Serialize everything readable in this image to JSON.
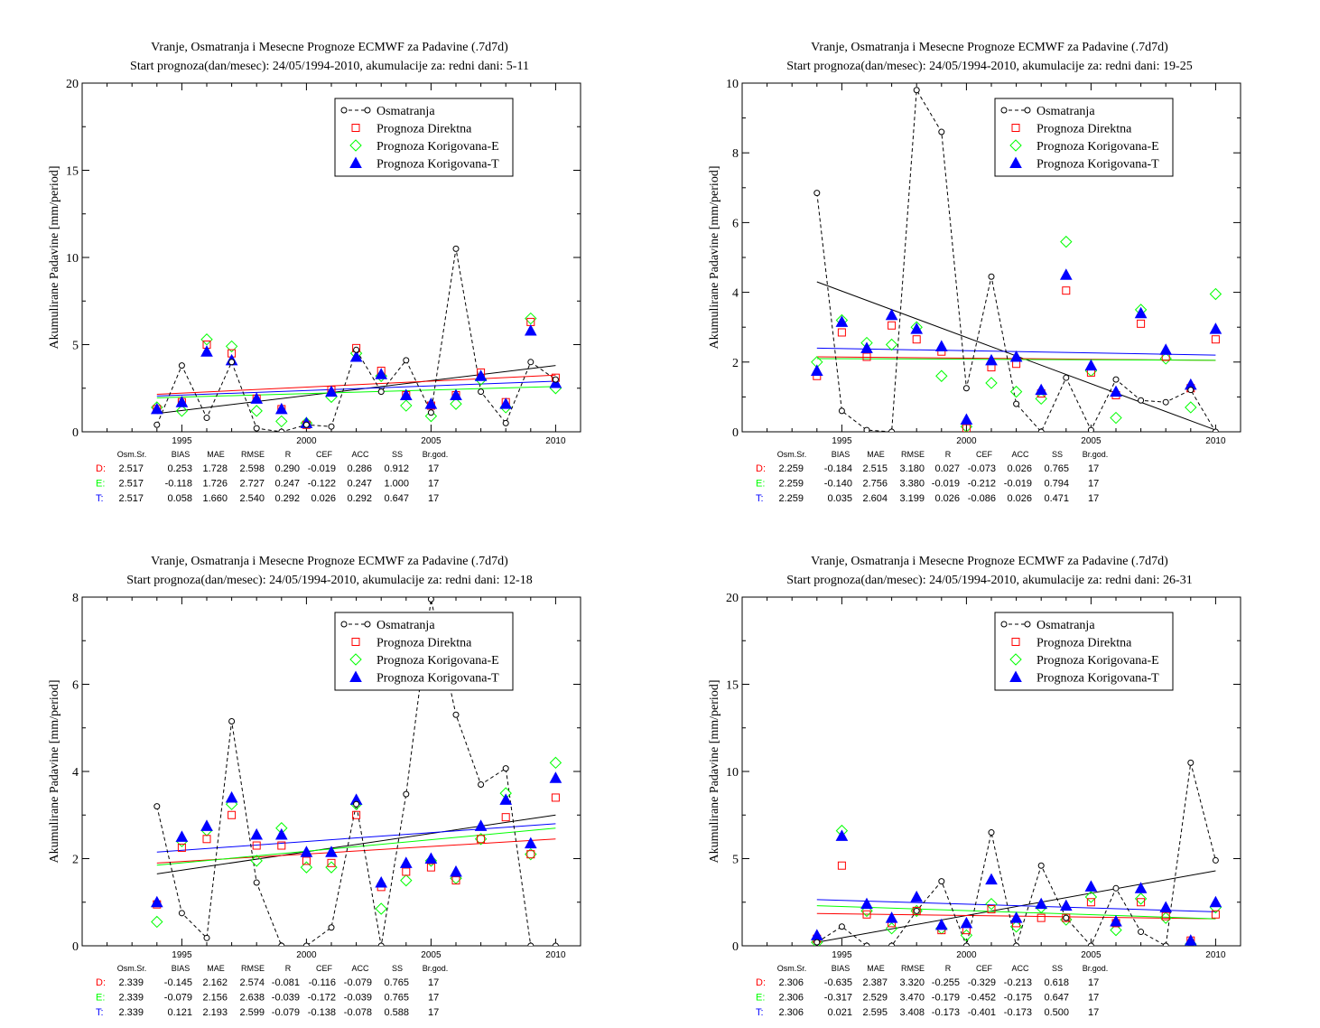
{
  "series_names": [
    "Osmatranja",
    "Prognoza Direktna",
    "Prognoza Korigovana-E",
    "Prognoza Korigovana-T"
  ],
  "ylabel": "Akumulirane Padavine [mm/period]",
  "stat_headers": [
    "Osm.Sr.",
    "BIAS",
    "MAE",
    "RMSE",
    "R",
    "CEF",
    "ACC",
    "SS",
    "Br.god."
  ],
  "colors": {
    "obs": "#000000",
    "direct": "#ff0000",
    "corr_e": "#00ff00",
    "corr_t": "#0000ff"
  },
  "chart_data": [
    {
      "type": "scatter",
      "title": "Vranje, Osmatranja i Mesecne Prognoze ECMWF za Padavine (.7d7d)",
      "subtitle": "Start prognoza(dan/mesec): 24/05/1994-2010, akumulacije za: redni dani: 5-11",
      "xlim": [
        1991,
        2011
      ],
      "ylim": [
        0,
        20
      ],
      "xticks": [
        1995,
        2000,
        2005,
        2010
      ],
      "yticks": [
        0,
        5,
        10,
        15,
        20
      ],
      "x": [
        1994,
        1995,
        1996,
        1997,
        1998,
        1999,
        2000,
        2001,
        2002,
        2003,
        2004,
        2005,
        2006,
        2007,
        2008,
        2009,
        2010
      ],
      "series": [
        {
          "name": "Osmatranja",
          "values": [
            0.4,
            3.8,
            0.8,
            4.0,
            0.2,
            0.0,
            0.4,
            0.3,
            4.7,
            2.3,
            4.1,
            1.1,
            10.5,
            2.3,
            0.5,
            4.0,
            3.0
          ]
        },
        {
          "name": "Prognoza Direktna",
          "values": [
            1.3,
            1.7,
            5.0,
            4.5,
            1.9,
            1.3,
            0.4,
            2.4,
            4.8,
            3.5,
            2.1,
            1.5,
            2.1,
            3.4,
            1.7,
            6.3,
            3.1
          ]
        },
        {
          "name": "Prognoza Korigovana-E",
          "values": [
            1.4,
            1.2,
            5.3,
            4.9,
            1.2,
            0.6,
            0.5,
            2.0,
            4.5,
            3.2,
            1.5,
            0.9,
            1.6,
            3.0,
            1.4,
            6.5,
            2.5
          ]
        },
        {
          "name": "Prognoza Korigovana-T",
          "values": [
            1.3,
            1.7,
            4.6,
            4.1,
            1.9,
            1.3,
            0.5,
            2.3,
            4.3,
            3.3,
            2.1,
            1.6,
            2.1,
            3.2,
            1.6,
            5.8,
            2.8
          ]
        }
      ],
      "trends": [
        [
          1.05,
          3.8
        ],
        [
          2.15,
          3.25
        ],
        [
          1.95,
          2.6
        ],
        [
          2.05,
          2.9
        ]
      ],
      "stats": [
        {
          "label": "D:",
          "values": [
            "2.517",
            "0.253",
            "1.728",
            "2.598",
            "0.290",
            "-0.019",
            "0.286",
            "0.912",
            "17"
          ]
        },
        {
          "label": "E:",
          "values": [
            "2.517",
            "-0.118",
            "1.726",
            "2.727",
            "0.247",
            "-0.122",
            "0.247",
            "1.000",
            "17"
          ]
        },
        {
          "label": "T:",
          "values": [
            "2.517",
            "0.058",
            "1.660",
            "2.540",
            "0.292",
            "0.026",
            "0.292",
            "0.647",
            "17"
          ]
        }
      ]
    },
    {
      "type": "scatter",
      "title": "Vranje, Osmatranja i Mesecne Prognoze ECMWF za Padavine (.7d7d)",
      "subtitle": "Start prognoza(dan/mesec): 24/05/1994-2010, akumulacije za: redni dani: 19-25",
      "xlim": [
        1991,
        2011
      ],
      "ylim": [
        0,
        10
      ],
      "xticks": [
        1995,
        2000,
        2005,
        2010
      ],
      "yticks": [
        0,
        2,
        4,
        6,
        8,
        10
      ],
      "x": [
        1994,
        1995,
        1996,
        1997,
        1998,
        1999,
        2000,
        2001,
        2002,
        2003,
        2004,
        2005,
        2006,
        2007,
        2008,
        2009,
        2010
      ],
      "series": [
        {
          "name": "Osmatranja",
          "values": [
            6.85,
            0.6,
            0.05,
            0.0,
            9.8,
            8.6,
            1.25,
            4.45,
            0.8,
            0.0,
            1.55,
            0.05,
            1.5,
            0.9,
            0.85,
            1.2,
            0.0
          ]
        },
        {
          "name": "Prognoza Direktna",
          "values": [
            1.6,
            2.85,
            2.15,
            3.05,
            2.65,
            2.3,
            0.1,
            1.85,
            1.95,
            1.1,
            4.05,
            1.7,
            1.05,
            3.1,
            2.15,
            1.25,
            2.65
          ]
        },
        {
          "name": "Prognoza Korigovana-E",
          "values": [
            2.0,
            3.2,
            2.55,
            2.5,
            3.0,
            1.6,
            0.15,
            1.4,
            1.15,
            0.95,
            5.45,
            1.75,
            0.4,
            3.5,
            2.1,
            0.7,
            3.95
          ]
        },
        {
          "name": "Prognoza Korigovana-T",
          "values": [
            1.75,
            3.15,
            2.4,
            3.35,
            2.95,
            2.45,
            0.35,
            2.05,
            2.15,
            1.2,
            4.5,
            1.9,
            1.15,
            3.4,
            2.35,
            1.35,
            2.95
          ]
        }
      ],
      "trends": [
        [
          4.3,
          0.05
        ],
        [
          2.15,
          2.05
        ],
        [
          2.1,
          2.05
        ],
        [
          2.4,
          2.2
        ]
      ],
      "stats": [
        {
          "label": "D:",
          "values": [
            "2.259",
            "-0.184",
            "2.515",
            "3.180",
            "0.027",
            "-0.073",
            "0.026",
            "0.765",
            "17"
          ]
        },
        {
          "label": "E:",
          "values": [
            "2.259",
            "-0.140",
            "2.756",
            "3.380",
            "-0.019",
            "-0.212",
            "-0.019",
            "0.794",
            "17"
          ]
        },
        {
          "label": "T:",
          "values": [
            "2.259",
            "0.035",
            "2.604",
            "3.199",
            "0.026",
            "-0.086",
            "0.026",
            "0.471",
            "17"
          ]
        }
      ]
    },
    {
      "type": "scatter",
      "title": "Vranje, Osmatranja i Mesecne Prognoze ECMWF za Padavine (.7d7d)",
      "subtitle": "Start prognoza(dan/mesec): 24/05/1994-2010, akumulacije za: redni dani: 12-18",
      "xlim": [
        1991,
        2011
      ],
      "ylim": [
        0,
        8
      ],
      "xticks": [
        1995,
        2000,
        2005,
        2010
      ],
      "yticks": [
        0,
        2,
        4,
        6,
        8
      ],
      "x": [
        1994,
        1995,
        1996,
        1997,
        1998,
        1999,
        2000,
        2001,
        2002,
        2003,
        2004,
        2005,
        2006,
        2007,
        2008,
        2009,
        2010
      ],
      "series": [
        {
          "name": "Osmatranja",
          "values": [
            3.2,
            0.75,
            0.18,
            5.15,
            1.45,
            0.0,
            0.0,
            0.42,
            3.25,
            0.0,
            3.48,
            7.95,
            5.3,
            3.7,
            4.07,
            0.0,
            0.0
          ]
        },
        {
          "name": "Prognoza Direktna",
          "values": [
            0.95,
            2.25,
            2.45,
            3.0,
            2.3,
            2.3,
            1.95,
            1.9,
            3.0,
            1.35,
            1.7,
            1.8,
            1.5,
            2.45,
            2.95,
            2.1,
            3.4
          ]
        },
        {
          "name": "Prognoza Korigovana-E",
          "values": [
            0.55,
            2.4,
            2.65,
            3.25,
            1.95,
            2.7,
            1.8,
            1.8,
            3.25,
            0.85,
            1.5,
            1.95,
            1.55,
            2.45,
            3.5,
            2.1,
            4.2
          ]
        },
        {
          "name": "Prognoza Korigovana-T",
          "values": [
            1.0,
            2.5,
            2.75,
            3.4,
            2.55,
            2.55,
            2.15,
            2.15,
            3.35,
            1.45,
            1.9,
            2.0,
            1.7,
            2.75,
            3.35,
            2.35,
            3.85
          ]
        }
      ],
      "trends": [
        [
          1.65,
          3.0
        ],
        [
          1.9,
          2.45
        ],
        [
          1.85,
          2.7
        ],
        [
          2.15,
          2.8
        ]
      ],
      "stats": [
        {
          "label": "D:",
          "values": [
            "2.339",
            "-0.145",
            "2.162",
            "2.574",
            "-0.081",
            "-0.116",
            "-0.079",
            "0.765",
            "17"
          ]
        },
        {
          "label": "E:",
          "values": [
            "2.339",
            "-0.079",
            "2.156",
            "2.638",
            "-0.039",
            "-0.172",
            "-0.039",
            "0.765",
            "17"
          ]
        },
        {
          "label": "T:",
          "values": [
            "2.339",
            "0.121",
            "2.193",
            "2.599",
            "-0.079",
            "-0.138",
            "-0.078",
            "0.588",
            "17"
          ]
        }
      ]
    },
    {
      "type": "scatter",
      "title": "Vranje, Osmatranja i Mesecne Prognoze ECMWF za Padavine (.7d7d)",
      "subtitle": "Start prognoza(dan/mesec): 24/05/1994-2010, akumulacije za: redni dani: 26-31",
      "xlim": [
        1991,
        2011
      ],
      "ylim": [
        0,
        20
      ],
      "xticks": [
        1995,
        2000,
        2005,
        2010
      ],
      "yticks": [
        0,
        5,
        10,
        15,
        20
      ],
      "x": [
        1994,
        1995,
        1996,
        1997,
        1998,
        1999,
        2000,
        2001,
        2002,
        2003,
        2004,
        2005,
        2006,
        2007,
        2008,
        2009,
        2010
      ],
      "series": [
        {
          "name": "Osmatranja",
          "values": [
            0.2,
            1.1,
            0.0,
            0.0,
            2.0,
            3.7,
            0.0,
            6.5,
            0.0,
            4.6,
            1.6,
            0.0,
            3.3,
            0.8,
            0.0,
            10.5,
            4.9
          ]
        },
        {
          "name": "Prognoza Direktna",
          "values": [
            0.4,
            4.6,
            1.8,
            1.3,
            2.0,
            0.9,
            0.9,
            2.1,
            1.3,
            1.6,
            1.6,
            2.5,
            1.3,
            2.5,
            1.7,
            0.3,
            1.8
          ]
        },
        {
          "name": "Prognoza Korigovana-E",
          "values": [
            0.2,
            6.6,
            2.0,
            1.0,
            2.0,
            1.0,
            0.6,
            2.4,
            1.1,
            2.2,
            1.5,
            2.8,
            0.9,
            2.7,
            1.6,
            0.1,
            2.2
          ]
        },
        {
          "name": "Prognoza Korigovana-T",
          "values": [
            0.6,
            6.3,
            2.4,
            1.6,
            2.8,
            1.2,
            1.3,
            3.8,
            1.6,
            2.4,
            2.3,
            3.4,
            1.4,
            3.3,
            2.2,
            0.3,
            2.5
          ]
        }
      ],
      "trends": [
        [
          0.2,
          4.3
        ],
        [
          1.85,
          1.55
        ],
        [
          2.3,
          1.55
        ],
        [
          2.65,
          1.95
        ]
      ],
      "stats": [
        {
          "label": "D:",
          "values": [
            "2.306",
            "-0.635",
            "2.387",
            "3.320",
            "-0.255",
            "-0.329",
            "-0.213",
            "0.618",
            "17"
          ]
        },
        {
          "label": "E:",
          "values": [
            "2.306",
            "-0.317",
            "2.529",
            "3.470",
            "-0.179",
            "-0.452",
            "-0.175",
            "0.647",
            "17"
          ]
        },
        {
          "label": "T:",
          "values": [
            "2.306",
            "0.021",
            "2.595",
            "3.408",
            "-0.173",
            "-0.401",
            "-0.173",
            "0.500",
            "17"
          ]
        }
      ]
    }
  ]
}
